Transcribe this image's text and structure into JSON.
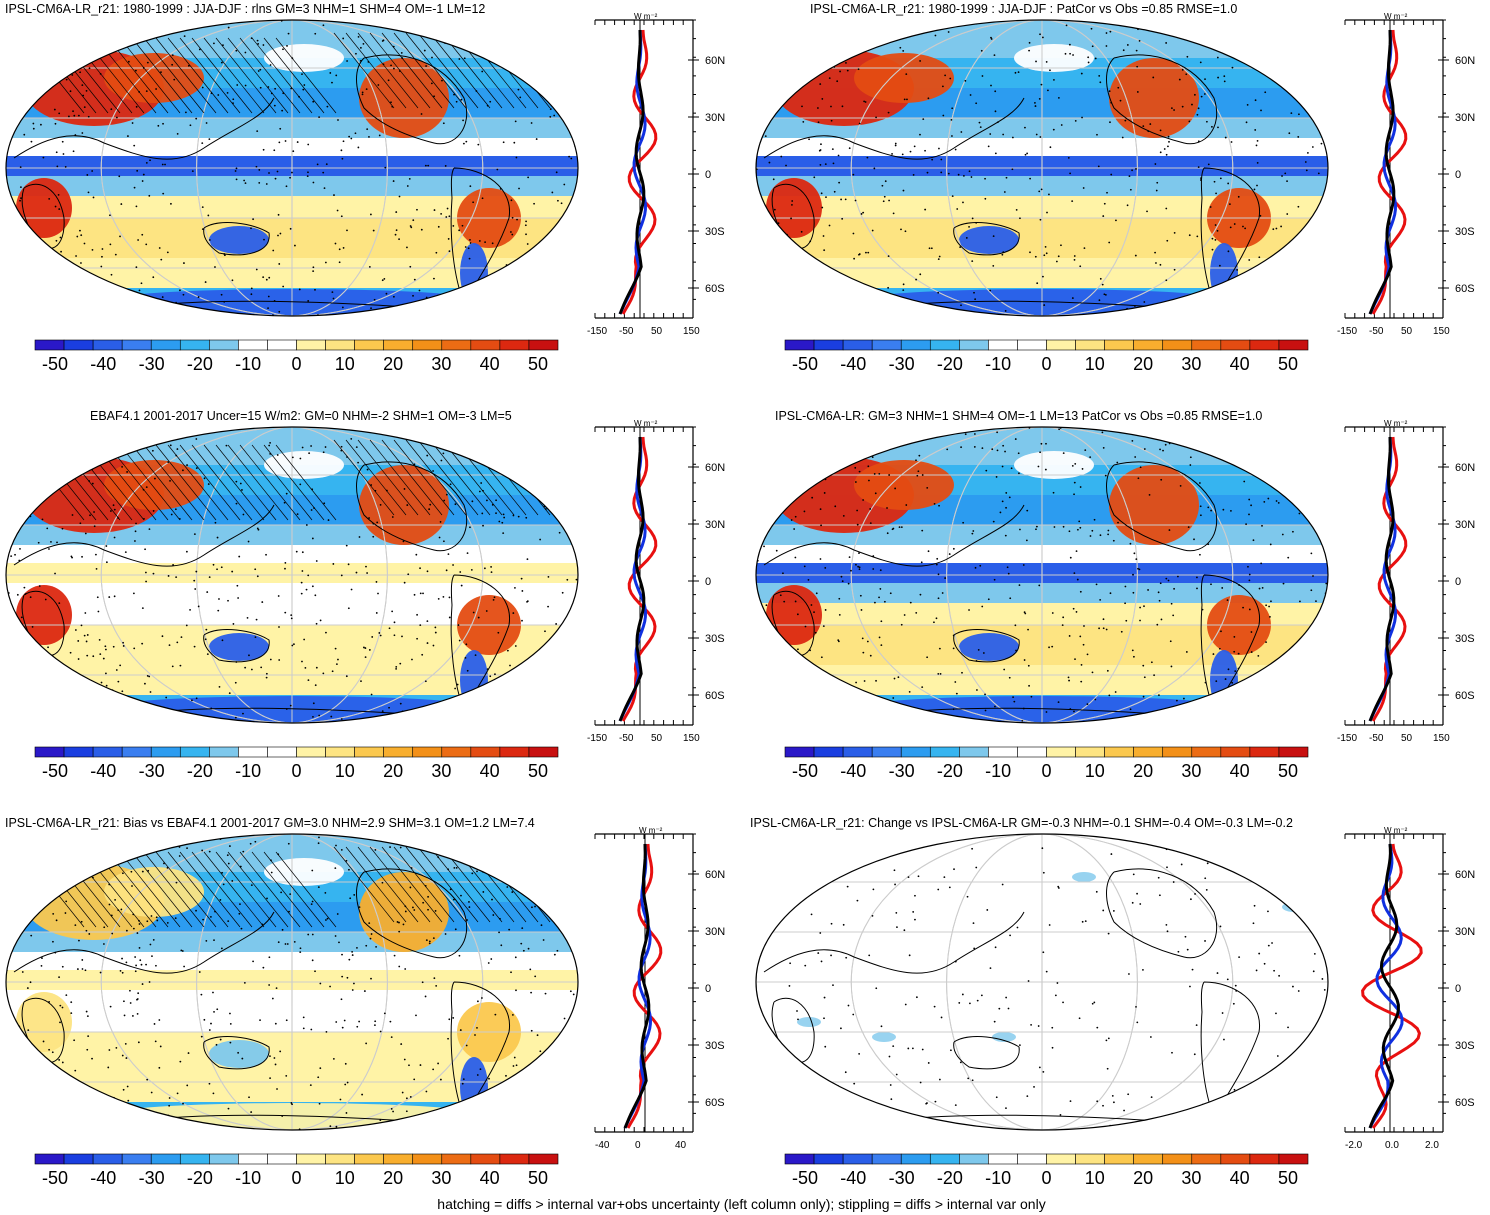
{
  "panels": [
    {
      "id": "p1",
      "title": "IPSL-CM6A-LR_r21: 1980-1999 : JJA-DJF : rlns GM=3 NHM=1 SHM=4 OM=-1 LM=12",
      "hatched": true,
      "blank": false,
      "profile": {
        "unit": "W m⁻²",
        "xticks": [
          "-150",
          "-50",
          "50",
          "150"
        ],
        "yticks": [
          "60N",
          "30N",
          "0",
          "30S",
          "60S"
        ]
      }
    },
    {
      "id": "p2",
      "title": "IPSL-CM6A-LR_r21: 1980-1999 : JJA-DJF : PatCor vs Obs =0.85 RMSE=1.0",
      "hatched": false,
      "blank": false,
      "profile": {
        "unit": "W m⁻²",
        "xticks": [
          "-150",
          "-50",
          "50",
          "150"
        ],
        "yticks": [
          "60N",
          "30N",
          "0",
          "30S",
          "60S"
        ]
      }
    },
    {
      "id": "p3",
      "title": "EBAF4.1 2001-2017 Uncer=15 W/m2: GM=0 NHM=-2 SHM=1 OM=-3 LM=5",
      "hatched": true,
      "blank": false,
      "profile": {
        "unit": "W m⁻²",
        "xticks": [
          "-150",
          "-50",
          "50",
          "150"
        ],
        "yticks": [
          "60N",
          "30N",
          "0",
          "30S",
          "60S"
        ]
      }
    },
    {
      "id": "p4",
      "title": "IPSL-CM6A-LR: GM=3 NHM=1 SHM=4 OM=-1 LM=13 PatCor vs Obs =0.85 RMSE=1.0",
      "hatched": false,
      "blank": false,
      "profile": {
        "unit": "W m⁻²",
        "xticks": [
          "-150",
          "-50",
          "50",
          "150"
        ],
        "yticks": [
          "60N",
          "30N",
          "0",
          "30S",
          "60S"
        ]
      }
    },
    {
      "id": "p5",
      "title": "IPSL-CM6A-LR_r21: Bias vs EBAF4.1 2001-2017 GM=3.0 NHM=2.9 SHM=3.1 OM=1.2 LM=7.4",
      "hatched": true,
      "blank": false,
      "profile": {
        "unit": "W m⁻²",
        "xticks": [
          "-40",
          "0",
          "40"
        ],
        "yticks": [
          "60N",
          "30N",
          "0",
          "30S",
          "60S"
        ]
      }
    },
    {
      "id": "p6",
      "title": "IPSL-CM6A-LR_r21: Change vs IPSL-CM6A-LR GM=-0.3 NHM=-0.1 SHM=-0.4 OM=-0.3 LM=-0.2",
      "hatched": false,
      "blank": true,
      "profile": {
        "unit": "W m⁻²",
        "xticks": [
          "-2.0",
          "0.0",
          "2.0"
        ],
        "yticks": [
          "60N",
          "30N",
          "0",
          "30S",
          "60S"
        ]
      }
    }
  ],
  "colorbar": {
    "labels": [
      "-50",
      "-40",
      "-30",
      "-20",
      "-10",
      "0",
      "10",
      "20",
      "30",
      "40",
      "50"
    ],
    "colors": [
      "#2a18c8",
      "#1a3ee0",
      "#2a5ee8",
      "#3a7ef0",
      "#2c9cf0",
      "#36b4f0",
      "#7ec8ec",
      "#ffffff",
      "#ffffff",
      "#fff3a6",
      "#fde482",
      "#fbc84e",
      "#f8ae2e",
      "#f39018",
      "#ec6c14",
      "#e44c12",
      "#dc2810",
      "#c81010"
    ]
  },
  "line_colors": {
    "red": "#e81010",
    "blue": "#1030e0",
    "black": "#000000"
  },
  "footer": "hatching = diffs > internal var+obs uncertainty (left column only); stippling = diffs > internal var only"
}
